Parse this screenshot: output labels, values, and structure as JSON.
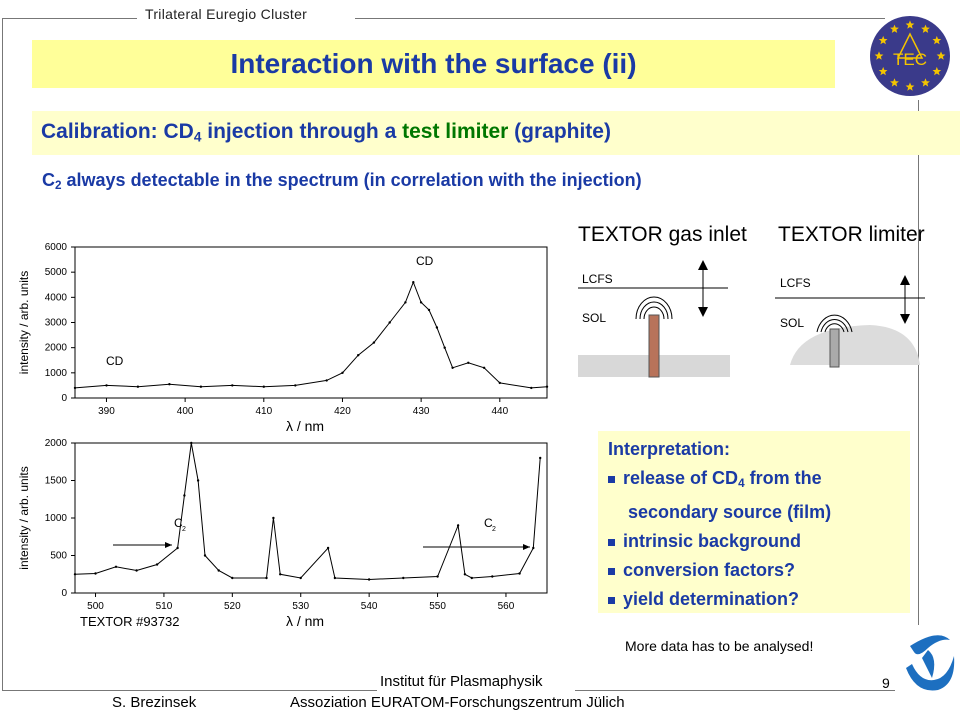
{
  "header": {
    "cluster": "Trilateral Euregio Cluster",
    "title": "Interaction with the surface (ii)",
    "logo_text": "TEC"
  },
  "subtitle": {
    "prefix": "Calibration: CD",
    "sub": "4",
    "mid": " injection through a ",
    "highlight": "test limiter",
    "suffix": " (graphite)"
  },
  "observation": {
    "prefix": "C",
    "sub": "2",
    "text": " always detectable in the spectrum (in correlation with the injection)"
  },
  "chart_data": [
    {
      "type": "line",
      "ylabel": "intensity / arb. units",
      "xlabel": "λ / nm",
      "xlim": [
        386,
        446
      ],
      "ylim": [
        0,
        6000
      ],
      "x_ticks": [
        "390",
        "400",
        "410",
        "420",
        "430",
        "440"
      ],
      "y_ticks": [
        "0",
        "1000",
        "2000",
        "3000",
        "4000",
        "5000",
        "6000"
      ],
      "annotations": [
        "CD",
        "CD"
      ],
      "series": [
        {
          "x": [
            386,
            390,
            394,
            398,
            402,
            406,
            410,
            414,
            418,
            420,
            422,
            424,
            426,
            428,
            429,
            430,
            431,
            432,
            433,
            434,
            436,
            438,
            440,
            444,
            446
          ],
          "values": [
            400,
            500,
            450,
            550,
            450,
            500,
            450,
            500,
            700,
            1000,
            1700,
            2200,
            3000,
            3800,
            4600,
            3800,
            3500,
            2800,
            2000,
            1200,
            1400,
            1200,
            600,
            400,
            450
          ]
        }
      ]
    },
    {
      "type": "line",
      "ylabel": "intensity / arb. units",
      "xlabel": "λ / nm",
      "xlim": [
        497,
        566
      ],
      "ylim": [
        0,
        2000
      ],
      "x_ticks": [
        "500",
        "510",
        "520",
        "530",
        "540",
        "550",
        "560"
      ],
      "y_ticks": [
        "0",
        "500",
        "1000",
        "1500",
        "2000"
      ],
      "annotations": [
        "C2",
        "C2"
      ],
      "series_label": "TEXTOR #93732",
      "series": [
        {
          "x": [
            497,
            500,
            503,
            506,
            509,
            512,
            513,
            514,
            515,
            516,
            518,
            520,
            525,
            526,
            527,
            530,
            534,
            535,
            540,
            545,
            550,
            553,
            554,
            555,
            558,
            562,
            564,
            565
          ],
          "values": [
            250,
            260,
            350,
            300,
            380,
            600,
            1300,
            2000,
            1500,
            500,
            300,
            200,
            200,
            1000,
            250,
            200,
            600,
            200,
            180,
            200,
            220,
            900,
            250,
            200,
            220,
            260,
            600,
            1800
          ]
        }
      ]
    }
  ],
  "diagram": {
    "gas_inlet_title": "TEXTOR gas inlet",
    "limiter_title": "TEXTOR limiter",
    "lcfs": "LCFS",
    "sol": "SOL"
  },
  "interpretation": {
    "title": "Interpretation:",
    "item1_prefix": "release of CD",
    "item1_sub": "4",
    "item1_suffix": " from the",
    "item1_cont": "secondary source (film)",
    "item2": "intrinsic background",
    "item3": "conversion factors?",
    "item4": "yield determination?"
  },
  "note": "More data has to be analysed!",
  "footer": {
    "page": "9",
    "institute": "Institut für Plasmaphysik",
    "association": "Assoziation EURATOM-Forschungszentrum Jülich",
    "author": "S. Brezinsek"
  },
  "colors": {
    "title_blue": "#1a3aa5",
    "highlight_green": "#007700",
    "title_bar": "#ffff99",
    "box_bg": "#ffffcc",
    "logo_bg": "#3a3a8a",
    "star": "#f4c400"
  }
}
